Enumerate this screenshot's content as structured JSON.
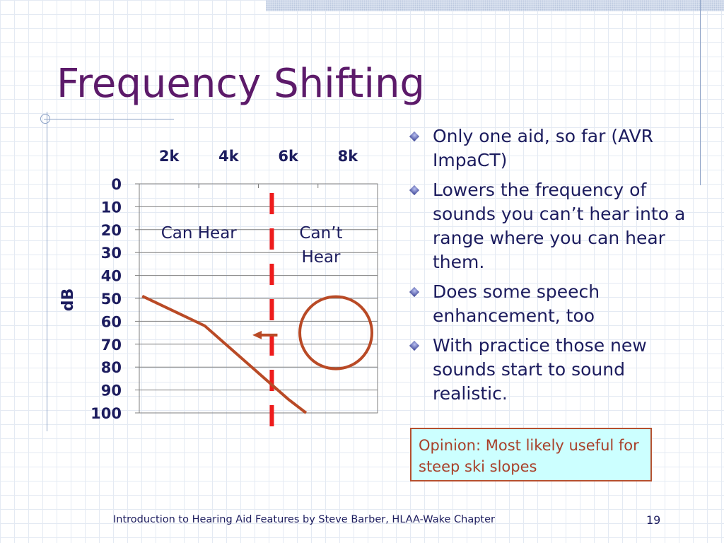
{
  "slide": {
    "title": "Frequency Shifting",
    "page_number": "19",
    "footer": "Introduction to Hearing Aid Features by Steve Barber, HLAA-Wake Chapter"
  },
  "bullets": [
    {
      "text": "Only one aid, so far (AVR ImpaCT)"
    },
    {
      "text": "Lowers the frequency of sounds you can’t hear into a range where you can hear them."
    },
    {
      "text": "Does some speech enhancement, too"
    },
    {
      "text": "With practice those new sounds start to sound realistic."
    }
  ],
  "opinion": {
    "text": "Opinion: Most likely useful for steep ski slopes"
  },
  "chart_data": {
    "type": "line",
    "xlabel": "",
    "ylabel": "dB",
    "x_tick_labels": [
      "2k",
      "4k",
      "6k",
      "8k"
    ],
    "y_ticks": [
      0,
      10,
      20,
      30,
      40,
      50,
      60,
      70,
      80,
      90,
      100
    ],
    "xlim": [
      1000,
      9000
    ],
    "ylim": [
      100,
      0
    ],
    "x_axis_position": "top",
    "grid": {
      "horizontal": true,
      "vertical": false
    },
    "series": [
      {
        "color": "#b94a26",
        "points": [
          [
            1100,
            49
          ],
          [
            3200,
            62
          ],
          [
            6000,
            94
          ],
          [
            6600,
            100
          ]
        ]
      }
    ],
    "cutoff_line": {
      "x": 5450,
      "color": "#ee1c1c",
      "style": "dashed"
    },
    "region_labels": {
      "hear": {
        "text": "Can Hear",
        "x": 3000,
        "y": 20
      },
      "cant_hear": {
        "text": "Can’t Hear",
        "x": 7100,
        "y": 20
      }
    },
    "circle": {
      "cx": 7600,
      "cy": 65,
      "color": "#b94a26"
    },
    "arrow": {
      "from": [
        5450,
        66
      ],
      "to": [
        4800,
        66
      ],
      "color": "#b94a26"
    }
  }
}
